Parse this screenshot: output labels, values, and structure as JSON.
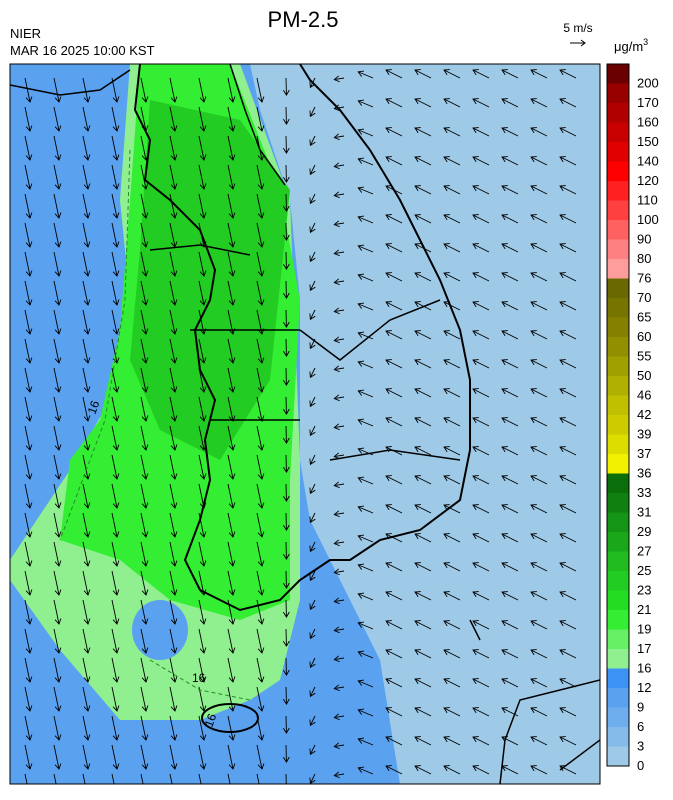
{
  "header": {
    "title": "PM-2.5",
    "agency": "NIER",
    "time": "MAR 16 2025 10:00 KST",
    "wind_scale": "5 m/s",
    "unit": "μg/m",
    "unit_sup": "3"
  },
  "colorbar": {
    "levels": [
      0,
      3,
      6,
      9,
      12,
      16,
      17,
      19,
      21,
      23,
      25,
      27,
      29,
      31,
      33,
      36,
      37,
      39,
      42,
      46,
      50,
      55,
      60,
      65,
      70,
      76,
      80,
      90,
      100,
      110,
      120,
      140,
      150,
      160,
      170,
      200
    ],
    "colors": [
      "#9ecae8",
      "#85bbeb",
      "#6eaeee",
      "#5aa2f0",
      "#3d92f5",
      "#90f090",
      "#66f066",
      "#33ee33",
      "#22dd22",
      "#22cc22",
      "#1fbb1f",
      "#1aa81a",
      "#159515",
      "#108010",
      "#0a6e0a",
      "#f0f000",
      "#dddd00",
      "#cccc00",
      "#c0c000",
      "#b0b000",
      "#a0a000",
      "#909000",
      "#858000",
      "#787400",
      "#6a6800",
      "#ff9c9c",
      "#ff8080",
      "#ff6060",
      "#ff4040",
      "#ff2020",
      "#ff0000",
      "#e00000",
      "#c80000",
      "#b00000",
      "#980000",
      "#6b0000"
    ]
  },
  "contour_labels": [
    "16",
    "16",
    "16"
  ]
}
